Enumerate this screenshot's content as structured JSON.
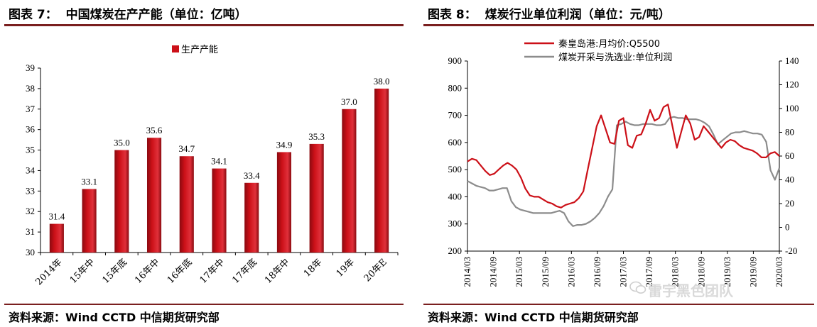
{
  "left": {
    "title": "图表 7：  中国煤炭在产产能（单位：亿吨）",
    "source": "资料来源：Wind CCTD 中信期货研究部",
    "chart_data": {
      "type": "bar",
      "categories": [
        "2014年",
        "15年中",
        "15年底",
        "16年中",
        "16年底",
        "17年中",
        "17年底",
        "18年中",
        "18年",
        "19年",
        "20年E"
      ],
      "series": [
        {
          "name": "生产产能",
          "values": [
            31.4,
            33.1,
            35.0,
            35.6,
            34.7,
            34.1,
            33.4,
            34.9,
            35.3,
            37.0,
            38.0
          ]
        }
      ],
      "data_labels": [
        "31.4",
        "33.1",
        "35.0",
        "35.6",
        "34.7",
        "34.1",
        "33.4",
        "34.9",
        "35.3",
        "37.0",
        "38.0"
      ],
      "yticks": [
        "30",
        "31",
        "32",
        "33",
        "34",
        "35",
        "36",
        "37",
        "38",
        "39"
      ],
      "ylim": [
        30,
        39
      ],
      "legend_position": "top-center",
      "grid": false,
      "colors": {
        "bar": "#cc1018",
        "bar_dark": "#8a0a10"
      }
    }
  },
  "right": {
    "title": "图表 8：  煤炭行业单位利润（单位：元/吨）",
    "source": "资料来源：Wind CCTD 中信期货研究部",
    "watermark": "雷宇黑色团队",
    "chart_data": {
      "type": "line",
      "x_tick_labels": [
        "2014/03",
        "2014/09",
        "2015/03",
        "2015/09",
        "2016/03",
        "2016/09",
        "2017/03",
        "2017/09",
        "2018/03",
        "2018/09",
        "2019/03",
        "2019/09",
        "2020/03"
      ],
      "ylim_left": [
        200,
        900
      ],
      "yticks_left": [
        "200",
        "300",
        "400",
        "500",
        "600",
        "700",
        "800",
        "900"
      ],
      "ylim_right": [
        -20,
        140
      ],
      "yticks_right": [
        "-20",
        "0",
        "20",
        "40",
        "60",
        "80",
        "100",
        "120",
        "140"
      ],
      "legend_position": "top-left",
      "grid": false,
      "series": [
        {
          "name": "秦皇岛港:月均价:Q5500",
          "axis": "left",
          "color": "#cc1018",
          "values": [
            530,
            540,
            535,
            515,
            495,
            480,
            485,
            500,
            515,
            525,
            515,
            500,
            470,
            430,
            405,
            400,
            400,
            390,
            380,
            375,
            365,
            360,
            370,
            375,
            380,
            395,
            420,
            500,
            580,
            660,
            700,
            650,
            600,
            595,
            680,
            690,
            590,
            580,
            625,
            630,
            670,
            720,
            680,
            690,
            730,
            740,
            660,
            580,
            640,
            700,
            670,
            610,
            620,
            660,
            640,
            620,
            600,
            580,
            600,
            610,
            605,
            590,
            580,
            575,
            570,
            560,
            545,
            545,
            560,
            565,
            550
          ]
        },
        {
          "name": "煤炭开采与洗选业:单位利润",
          "axis": "right",
          "color": "#8c8c8c",
          "values": [
            39,
            37,
            35,
            34,
            33,
            31,
            31,
            32,
            33,
            33,
            22,
            17,
            15,
            14,
            13,
            12,
            12,
            12,
            12,
            12,
            13,
            14,
            12,
            5,
            1,
            2,
            2,
            3,
            5,
            8,
            12,
            18,
            26,
            32,
            86,
            87,
            89,
            87,
            86,
            86,
            87,
            87,
            87,
            86,
            86,
            87,
            92,
            93,
            92,
            92,
            91,
            91,
            91,
            90,
            88,
            85,
            78,
            70,
            73,
            76,
            79,
            80,
            80,
            81,
            80,
            79,
            79,
            78,
            72,
            48,
            40,
            50
          ]
        }
      ]
    }
  }
}
